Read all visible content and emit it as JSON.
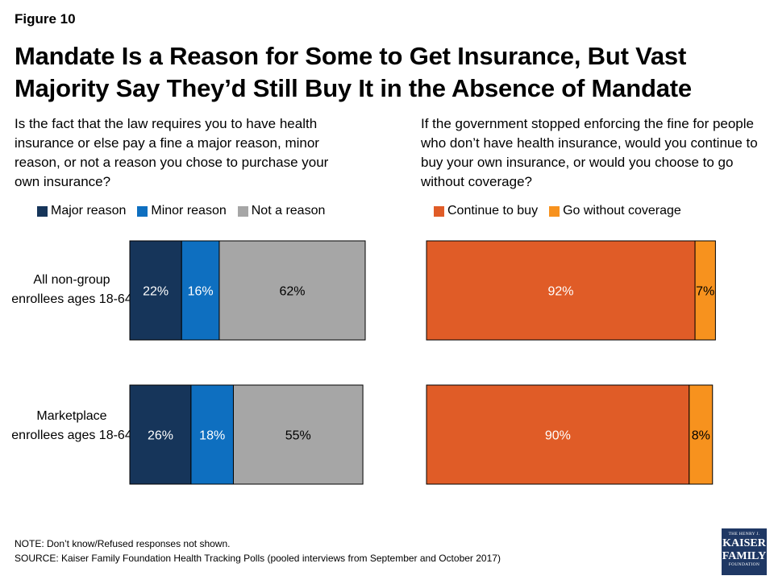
{
  "figure_label": "Figure 10",
  "title_line1": "Mandate Is a Reason for Some to Get Insurance, But Vast",
  "title_line2": "Majority Say They’d Still Buy It in the Absence of Mandate",
  "left_question": "Is the fact that the law requires you to have health insurance or else pay a fine a major reason, minor reason, or not a reason you chose to purchase your own insurance?",
  "right_question": "If the government stopped enforcing the fine for people who don’t have health insurance, would you continue to buy your own insurance, or would you choose to go without coverage?",
  "row_labels": {
    "row1": "All non-group enrollees ages 18-64",
    "row2": "Marketplace enrollees ages 18-64"
  },
  "notes": {
    "note": "NOTE: Don’t know/Refused responses not shown.",
    "source": "SOURCE: Kaiser Family Foundation Health Tracking Polls (pooled interviews from September and October 2017)"
  },
  "logo": {
    "line1": "THE HENRY J.",
    "line2a": "KAISER",
    "line2b": "FAMILY",
    "line3": "FOUNDATION"
  },
  "chart_data": [
    {
      "type": "bar",
      "orientation": "horizontal",
      "stacked": true,
      "categories": [
        "All non-group enrollees ages 18-64",
        "Marketplace enrollees ages 18-64"
      ],
      "series": [
        {
          "name": "Major reason",
          "values": [
            22,
            26
          ],
          "labels": [
            "22%",
            "26%"
          ],
          "color": "#16355a",
          "label_color": "#ffffff"
        },
        {
          "name": "Minor reason",
          "values": [
            16,
            18
          ],
          "labels": [
            "16%",
            "18%"
          ],
          "color": "#0e6fc0",
          "label_color": "#ffffff"
        },
        {
          "name": "Not a reason",
          "values": [
            62,
            55
          ],
          "labels": [
            "62%",
            "55%"
          ],
          "color": "#a6a6a6",
          "label_color": "#000000"
        }
      ],
      "xlim": [
        0,
        100
      ],
      "grid": false,
      "legend": "top"
    },
    {
      "type": "bar",
      "orientation": "horizontal",
      "stacked": true,
      "categories": [
        "All non-group enrollees ages 18-64",
        "Marketplace enrollees ages 18-64"
      ],
      "series": [
        {
          "name": "Continue to buy",
          "values": [
            92,
            90
          ],
          "labels": [
            "92%",
            "90%"
          ],
          "color": "#e05c27",
          "label_color": "#ffffff"
        },
        {
          "name": "Go without coverage",
          "values": [
            7,
            8
          ],
          "labels": [
            "7%",
            "8%"
          ],
          "color": "#f7921e",
          "label_color": "#000000"
        }
      ],
      "xlim": [
        0,
        100
      ],
      "grid": false,
      "legend": "top"
    }
  ]
}
